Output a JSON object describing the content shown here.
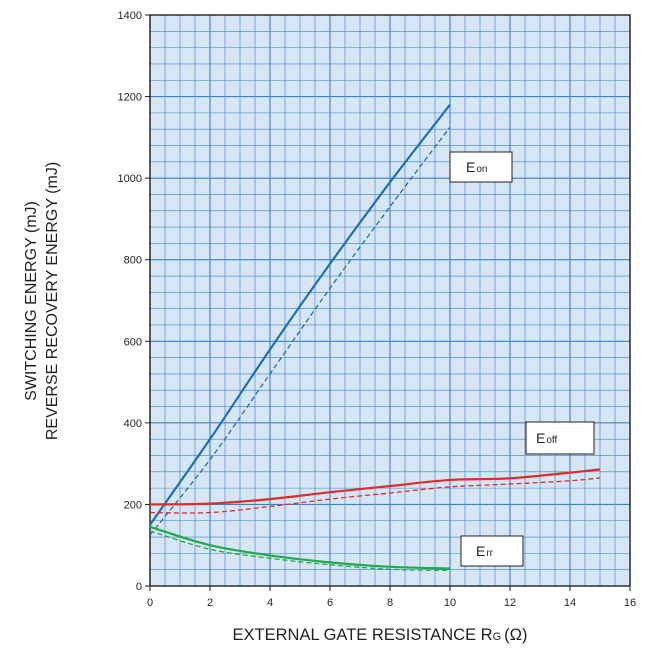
{
  "chart_data": {
    "type": "line",
    "xlabel_main": "EXTERNAL GATE RESISTANCE R",
    "xlabel_sub": "G",
    "xlabel_unit": "(Ω)",
    "ylabel_line1": "SWITCHING ENERGY (mJ)",
    "ylabel_line2": "REVERSE RECOVERY ENERGY (mJ)",
    "xlim": [
      0,
      16
    ],
    "ylim": [
      0,
      1400
    ],
    "x_ticks": [
      "0",
      "2",
      "4",
      "6",
      "8",
      "10",
      "12",
      "14",
      "16"
    ],
    "y_ticks": [
      "0",
      "200",
      "400",
      "600",
      "800",
      "1000",
      "1200",
      "1400"
    ],
    "grid": true,
    "series": [
      {
        "group": "Eon",
        "style": "solid",
        "color": "#1f6fb5",
        "x": [
          0,
          2,
          4,
          6,
          8,
          10
        ],
        "y": [
          150,
          360,
          580,
          790,
          990,
          1180
        ]
      },
      {
        "group": "Eon",
        "style": "dashed",
        "color": "#1f6fb5",
        "x": [
          0,
          2,
          4,
          6,
          8,
          10
        ],
        "y": [
          125,
          310,
          520,
          730,
          930,
          1125
        ]
      },
      {
        "group": "Eoff",
        "style": "solid",
        "color": "#e02b2b",
        "x": [
          0,
          2,
          4,
          6,
          8,
          10,
          12,
          14,
          15
        ],
        "y": [
          200,
          202,
          213,
          230,
          245,
          260,
          264,
          278,
          286
        ]
      },
      {
        "group": "Eoff",
        "style": "dashed",
        "color": "#e02b2b",
        "x": [
          0,
          2,
          4,
          6,
          8,
          10,
          12,
          14,
          15
        ],
        "y": [
          180,
          180,
          195,
          213,
          228,
          243,
          250,
          258,
          265
        ]
      },
      {
        "group": "Err",
        "style": "solid",
        "color": "#22a94a",
        "x": [
          0,
          2,
          4,
          6,
          8,
          10
        ],
        "y": [
          145,
          100,
          75,
          58,
          47,
          43
        ]
      },
      {
        "group": "Err",
        "style": "dashed",
        "color": "#22a94a",
        "x": [
          0,
          2,
          4,
          6,
          8,
          10
        ],
        "y": [
          135,
          90,
          68,
          52,
          41,
          38
        ]
      }
    ],
    "annotations": [
      {
        "group": "Eon",
        "main": "E",
        "sub": "on"
      },
      {
        "group": "Eoff",
        "main": "E",
        "sub": "off"
      },
      {
        "group": "Err",
        "main": "E",
        "sub": "rr"
      }
    ]
  }
}
